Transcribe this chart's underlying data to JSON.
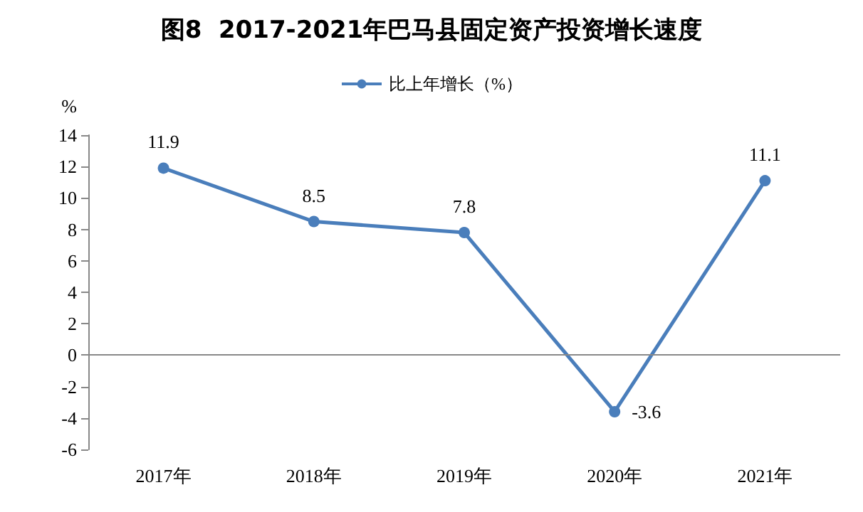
{
  "chart_data": {
    "type": "line",
    "title": "图8  2017-2021年巴马县固定资产投资增长速度",
    "ylabel": "%",
    "categories": [
      "2017年",
      "2018年",
      "2019年",
      "2020年",
      "2021年"
    ],
    "series": [
      {
        "name": "比上年增长（%）",
        "color": "#4a7ebb",
        "values": [
          11.9,
          8.5,
          7.8,
          -3.6,
          11.1
        ]
      }
    ],
    "ylim": [
      -6,
      14
    ],
    "yticks": [
      -6,
      -4,
      -2,
      0,
      2,
      4,
      6,
      8,
      10,
      12,
      14
    ],
    "grid": false,
    "ref_lines": [
      {
        "axis": "y",
        "value": 0,
        "color": "#888888"
      }
    ],
    "legend": "top",
    "marker": "circle",
    "line_style": "solid",
    "data_labels": true
  }
}
